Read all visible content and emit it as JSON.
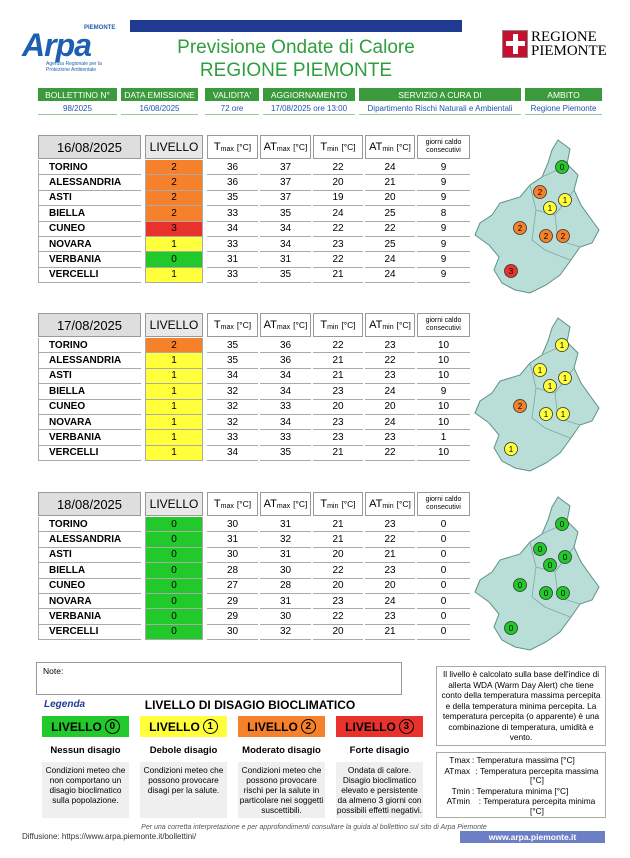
{
  "header": {
    "logo": {
      "name": "Arpa",
      "region": "PIEMONTE",
      "agency": "Agenzia Regionale per la Protezione Ambientale"
    },
    "title": "Previsione Ondate di Calore",
    "subtitle": "REGIONE PIEMONTE",
    "region_logo": [
      "REGIONE",
      "PIEMONTE"
    ]
  },
  "info": {
    "labels": [
      "BOLLETTINO N°",
      "DATA EMISSIONE",
      "VALIDITA'",
      "AGGIORNAMENTO",
      "SERVIZIO A CURA DI",
      "AMBITO"
    ],
    "values": [
      "98/2025",
      "16/08/2025",
      "72 ore",
      "17/08/2025 ore 13:00",
      "Dipartimento Rischi Naturali e Ambientali",
      "Regione Piemonte"
    ]
  },
  "columns": {
    "level": "LIVELLO",
    "temps": [
      {
        "symbol": "T",
        "sub": "max",
        "unit": "[°C]"
      },
      {
        "symbol": "AT",
        "sub": "max",
        "unit": "[°C]"
      },
      {
        "symbol": "T",
        "sub": "min",
        "unit": "[°C]"
      },
      {
        "symbol": "AT",
        "sub": "min",
        "unit": "[°C]"
      }
    ],
    "days": "giorni caldo consecutivi"
  },
  "level_colors": [
    "#22c92a",
    "#ffff3c",
    "#f5812a",
    "#e8322e"
  ],
  "forecasts": [
    {
      "date": "16/08/2025",
      "rows": [
        [
          "TORINO",
          2,
          36,
          37,
          22,
          24,
          9
        ],
        [
          "ALESSANDRIA",
          2,
          36,
          37,
          20,
          21,
          9
        ],
        [
          "ASTI",
          2,
          35,
          37,
          19,
          20,
          9
        ],
        [
          "BIELLA",
          2,
          33,
          35,
          24,
          25,
          8
        ],
        [
          "CUNEO",
          3,
          34,
          34,
          22,
          22,
          9
        ],
        [
          "NOVARA",
          1,
          33,
          34,
          23,
          25,
          9
        ],
        [
          "VERBANIA",
          0,
          31,
          31,
          22,
          24,
          9
        ],
        [
          "VERCELLI",
          1,
          33,
          35,
          21,
          24,
          9
        ]
      ]
    },
    {
      "date": "17/08/2025",
      "rows": [
        [
          "TORINO",
          2,
          35,
          36,
          22,
          23,
          10
        ],
        [
          "ALESSANDRIA",
          1,
          35,
          36,
          21,
          22,
          10
        ],
        [
          "ASTI",
          1,
          34,
          34,
          21,
          23,
          10
        ],
        [
          "BIELLA",
          1,
          32,
          34,
          23,
          24,
          9
        ],
        [
          "CUNEO",
          1,
          32,
          33,
          20,
          20,
          10
        ],
        [
          "NOVARA",
          1,
          32,
          34,
          23,
          24,
          10
        ],
        [
          "VERBANIA",
          1,
          33,
          33,
          23,
          23,
          1
        ],
        [
          "VERCELLI",
          1,
          34,
          35,
          21,
          22,
          10
        ]
      ]
    },
    {
      "date": "18/08/2025",
      "rows": [
        [
          "TORINO",
          0,
          30,
          31,
          21,
          23,
          0
        ],
        [
          "ALESSANDRIA",
          0,
          31,
          32,
          21,
          22,
          0
        ],
        [
          "ASTI",
          0,
          30,
          31,
          20,
          21,
          0
        ],
        [
          "BIELLA",
          0,
          28,
          30,
          22,
          23,
          0
        ],
        [
          "CUNEO",
          0,
          27,
          28,
          20,
          20,
          0
        ],
        [
          "NOVARA",
          0,
          29,
          31,
          23,
          24,
          0
        ],
        [
          "VERBANIA",
          0,
          29,
          30,
          22,
          23,
          0
        ],
        [
          "VERCELLI",
          0,
          30,
          32,
          20,
          21,
          0
        ]
      ]
    }
  ],
  "note": "Note:",
  "legend": {
    "label": "Legenda",
    "title": "LIVELLO DI DISAGIO BIOCLIMATICO",
    "word": "LIVELLO",
    "levels": [
      {
        "number": 0,
        "name": "Nessun disagio",
        "description": "Condizioni meteo che non comportano un disagio bioclimatico sulla popolazione."
      },
      {
        "number": 1,
        "name": "Debole disagio",
        "description": "Condizioni meteo che possono provocare disagi per la salute."
      },
      {
        "number": 2,
        "name": "Moderato disagio",
        "description": "Condizioni meteo che possono provocare rischi per la salute in particolare nei soggetti suscettibili."
      },
      {
        "number": 3,
        "name": "Forte disagio",
        "description": "Ondata di calore. Disagio bioclimatico elevato e persistente da almeno 3 giorni con possibili effetti negativi."
      }
    ]
  },
  "explanation": "Il livello è calcolato sulla base dell'indice di allerta WDA (Warm Day Alert) che tiene conto della temperatura massima percepita e della temperatura minima percepita. La temperatura percepita (o apparente) è una combinazione di temperatura, umidità e vento.",
  "abbreviations": [
    {
      "symbol": "Tmax",
      "text": ": Temperatura massima [°C]"
    },
    {
      "symbol": "ATmax",
      "text": ": Temperatura percepita massima [°C]"
    },
    {
      "symbol": "Tmin",
      "text": ": Temperatura minima [°C]"
    },
    {
      "symbol": "ATmin",
      "text": ": Temperatura percepita minima [°C]"
    }
  ],
  "footer": {
    "disclaimer": "Per una corretta interpretazione e per approfondimenti consultare la guida al bollettino sul sito di Arpa Piemonte",
    "diffusion": "Diffusione: https://www.arpa.piemonte.it/bollettini/",
    "website": "www.arpa.piemonte.it"
  }
}
